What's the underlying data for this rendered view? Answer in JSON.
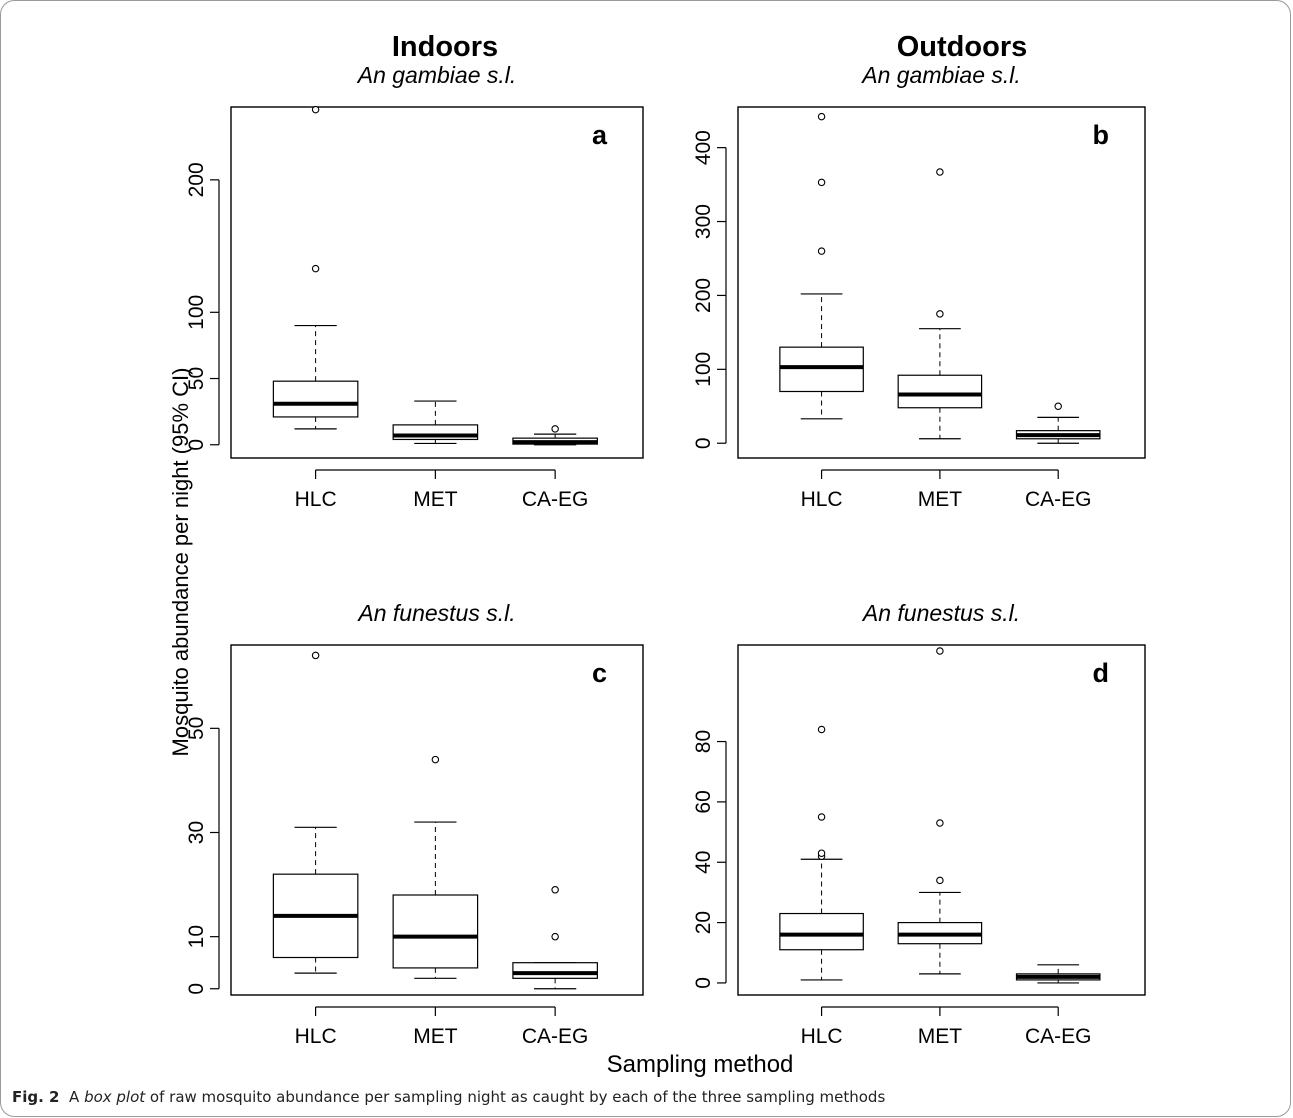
{
  "figure": {
    "column_titles": [
      "Indoors",
      "Outdoors"
    ],
    "ylabel": "Mosquito abundance per night (95% CI)",
    "xlabel": "Sampling method",
    "caption": {
      "label": "Fig. 2",
      "prefix": "A ",
      "emph": "box plot",
      "rest": " of raw mosquito abundance per sampling night as caught by each of the three sampling methods"
    }
  },
  "chart_data": [
    {
      "type": "box",
      "panel": "a",
      "subtitle": "An gambiae s.l.",
      "categories": [
        "HLC",
        "MET",
        "CA-EG"
      ],
      "yticks": [
        0,
        50,
        100,
        200
      ],
      "ylim": [
        -10,
        255
      ],
      "boxes": [
        {
          "category": "HLC",
          "whisker_low": 12,
          "q1": 21,
          "median": 31,
          "q3": 48,
          "whisker_high": 90,
          "outliers": [
            133,
            253
          ]
        },
        {
          "category": "MET",
          "whisker_low": 1,
          "q1": 4,
          "median": 7,
          "q3": 15,
          "whisker_high": 33,
          "outliers": []
        },
        {
          "category": "CA-EG",
          "whisker_low": 0,
          "q1": 0.5,
          "median": 2,
          "q3": 5,
          "whisker_high": 8,
          "outliers": [
            12
          ]
        }
      ]
    },
    {
      "type": "box",
      "panel": "b",
      "subtitle": "An gambiae s.l.",
      "categories": [
        "HLC",
        "MET",
        "CA-EG"
      ],
      "yticks": [
        0,
        100,
        200,
        300,
        400
      ],
      "ylim": [
        -20,
        455
      ],
      "boxes": [
        {
          "category": "HLC",
          "whisker_low": 33,
          "q1": 70,
          "median": 103,
          "q3": 130,
          "whisker_high": 202,
          "outliers": [
            260,
            353,
            442
          ]
        },
        {
          "category": "MET",
          "whisker_low": 6,
          "q1": 48,
          "median": 66,
          "q3": 92,
          "whisker_high": 155,
          "outliers": [
            175,
            367
          ]
        },
        {
          "category": "CA-EG",
          "whisker_low": 0,
          "q1": 6,
          "median": 11,
          "q3": 17,
          "whisker_high": 35,
          "outliers": [
            50
          ]
        }
      ]
    },
    {
      "type": "box",
      "panel": "c",
      "subtitle": "An funestus s.l.",
      "categories": [
        "HLC",
        "MET",
        "CA-EG"
      ],
      "yticks": [
        0,
        10,
        30,
        50
      ],
      "ylim": [
        -1.2,
        66
      ],
      "boxes": [
        {
          "category": "HLC",
          "whisker_low": 3,
          "q1": 6,
          "median": 14,
          "q3": 22,
          "whisker_high": 31,
          "outliers": [
            64
          ]
        },
        {
          "category": "MET",
          "whisker_low": 2,
          "q1": 4,
          "median": 10,
          "q3": 18,
          "whisker_high": 32,
          "outliers": [
            44
          ]
        },
        {
          "category": "CA-EG",
          "whisker_low": 0,
          "q1": 2,
          "median": 3,
          "q3": 5,
          "whisker_high": 5,
          "outliers": [
            10,
            19
          ]
        }
      ]
    },
    {
      "type": "box",
      "panel": "d",
      "subtitle": "An funestus s.l.",
      "categories": [
        "HLC",
        "MET",
        "CA-EG"
      ],
      "yticks": [
        0,
        20,
        40,
        60,
        80
      ],
      "ylim": [
        -4,
        112
      ],
      "boxes": [
        {
          "category": "HLC",
          "whisker_low": 1,
          "q1": 11,
          "median": 16,
          "q3": 23,
          "whisker_high": 41,
          "outliers": [
            42,
            43,
            55,
            84
          ]
        },
        {
          "category": "MET",
          "whisker_low": 3,
          "q1": 13,
          "median": 16,
          "q3": 20,
          "whisker_high": 30,
          "outliers": [
            34,
            53,
            110
          ]
        },
        {
          "category": "CA-EG",
          "whisker_low": 0,
          "q1": 1,
          "median": 2,
          "q3": 3,
          "whisker_high": 6,
          "outliers": []
        }
      ]
    }
  ]
}
